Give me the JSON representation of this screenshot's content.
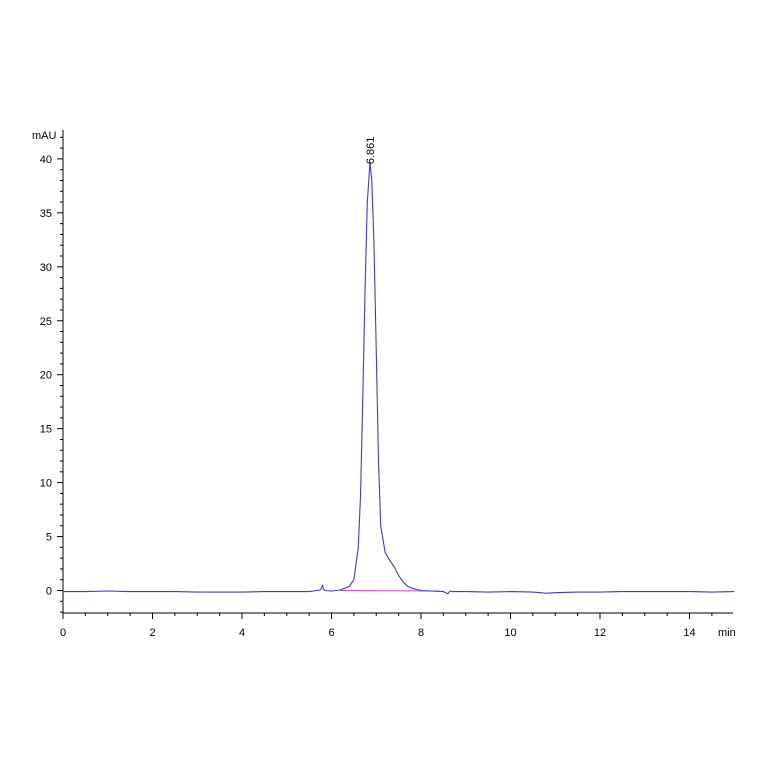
{
  "chart_data": {
    "type": "line",
    "xlabel": "min",
    "ylabel": "mAU",
    "xlim": [
      0,
      15
    ],
    "ylim": [
      -2.5,
      42
    ],
    "x_ticks": [
      0,
      2,
      4,
      6,
      8,
      10,
      12,
      14
    ],
    "y_ticks": [
      0,
      5,
      10,
      15,
      20,
      25,
      30,
      35,
      40
    ],
    "grid": false,
    "colors": {
      "trace": "#3a3ad0",
      "baseline": "#d040d0",
      "axis": "#000000"
    },
    "series": [
      {
        "x": [
          0,
          0.5,
          1.0,
          1.5,
          2.0,
          2.5,
          3.0,
          3.5,
          4.0,
          4.5,
          5.0,
          5.5,
          5.75,
          5.8,
          5.82,
          5.86,
          6.0,
          6.2,
          6.4,
          6.5,
          6.6,
          6.65,
          6.7,
          6.75,
          6.8,
          6.86,
          6.9,
          6.95,
          7.0,
          7.05,
          7.1,
          7.2,
          7.3,
          7.4,
          7.5,
          7.6,
          7.7,
          7.8,
          7.9,
          8.0,
          8.2,
          8.5,
          8.6,
          8.65,
          8.7,
          9.0,
          9.5,
          10.0,
          10.5,
          10.8,
          11.0,
          11.5,
          12.0,
          12.5,
          13.0,
          13.5,
          14.0,
          14.5,
          15.0
        ],
        "y": [
          -0.1,
          -0.1,
          -0.05,
          -0.1,
          -0.1,
          -0.1,
          -0.15,
          -0.15,
          -0.15,
          -0.1,
          -0.1,
          -0.1,
          0.05,
          0.5,
          0.1,
          0.0,
          -0.05,
          0.05,
          0.4,
          1.0,
          4.0,
          9.0,
          18.0,
          28.0,
          36.0,
          39.7,
          38.0,
          32.0,
          22.0,
          12.0,
          6.0,
          3.5,
          2.8,
          2.2,
          1.4,
          0.8,
          0.4,
          0.2,
          0.1,
          0.0,
          -0.05,
          -0.1,
          -0.3,
          -0.05,
          -0.1,
          -0.1,
          -0.15,
          -0.1,
          -0.15,
          -0.25,
          -0.2,
          -0.15,
          -0.15,
          -0.1,
          -0.1,
          -0.1,
          -0.1,
          -0.15,
          -0.1
        ]
      }
    ],
    "baseline": {
      "x": [
        6.2,
        8.4
      ],
      "y": [
        0.0,
        -0.05
      ]
    },
    "annotations": [
      {
        "x": 6.86,
        "y": 39.7,
        "text": "6.861"
      }
    ]
  }
}
